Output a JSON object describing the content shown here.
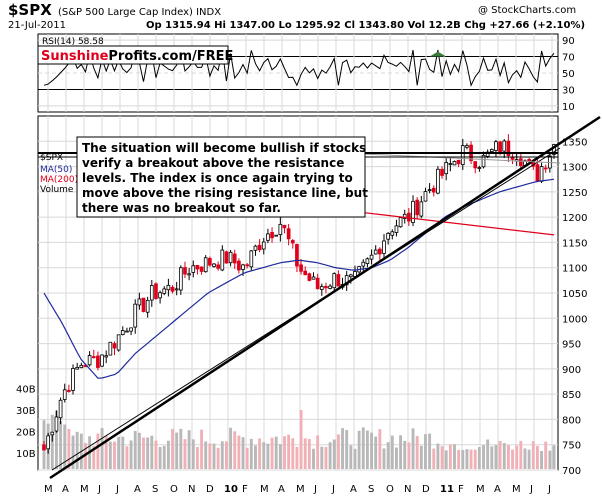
{
  "header": {
    "symbol": "$SPX",
    "name": "(S&P 500 Large Cap Index) INDX",
    "copyright": "@ StockCharts.com",
    "date": "21-Jul-2011",
    "ohlc": "Op 1315.94  Hi 1347.00  Lo 1295.92  Cl 1343.80  Vol 12.2B  Chg +27.66 (+2.10%)",
    "op_arrow": "▲"
  },
  "rsi": {
    "label": "RSI(14) 58.58",
    "ticks": [
      "90",
      "70",
      "50",
      "30",
      "10"
    ],
    "brand_red": "Sunshine",
    "brand_black": "Profits.com/FREE"
  },
  "legend": {
    "line1": "$SPX",
    "line2": "MA(50)",
    "line3": "MA(200)",
    "line4": "Volume"
  },
  "annotation": {
    "lines": [
      "The situation will become bullish if stocks",
      "verify a breakout above the resistance",
      "levels. The index is once again trying to",
      "move above the rising resistance line, but",
      "there was no breakout so far."
    ]
  },
  "price_ticks": [
    "1350",
    "1300",
    "1250",
    "1200",
    "1150",
    "1100",
    "1050",
    "1000",
    "950",
    "900",
    "850",
    "800",
    "750",
    "700"
  ],
  "volume_ticks": [
    "40B",
    "30B",
    "20B",
    "10B"
  ],
  "x_ticks": [
    "M",
    "A",
    "M",
    "J",
    "J",
    "A",
    "S",
    "O",
    "N",
    "D",
    "10",
    "F",
    "M",
    "A",
    "M",
    "J",
    "J",
    "A",
    "S",
    "O",
    "N",
    "D",
    "11",
    "F",
    "M",
    "A",
    "M",
    "J",
    "J"
  ],
  "colors": {
    "up": "#000000",
    "down": "#e0001b",
    "ma50": "#1e2a9c",
    "ma200": "#e0001b",
    "vol_up": "#b8b8b8",
    "vol_down": "#f0b0b6",
    "grid": "#d8d8d8",
    "rsi_overbought": "#3a7a3a"
  },
  "chart_data": {
    "type": "line",
    "title": "$SPX (S&P 500 Large Cap Index) INDX",
    "period": "weekly, Mar 2009 – Jul 2011",
    "x": [
      "2009-03",
      "2009-04",
      "2009-05",
      "2009-06",
      "2009-07",
      "2009-08",
      "2009-09",
      "2009-10",
      "2009-11",
      "2009-12",
      "2010-01",
      "2010-02",
      "2010-03",
      "2010-04",
      "2010-05",
      "2010-06",
      "2010-07",
      "2010-08",
      "2010-09",
      "2010-10",
      "2010-11",
      "2010-12",
      "2011-01",
      "2011-02",
      "2011-03",
      "2011-04",
      "2011-05",
      "2011-06",
      "2011-07"
    ],
    "series": [
      {
        "name": "$SPX",
        "values": [
          740,
          850,
          910,
          920,
          960,
          1010,
          1050,
          1060,
          1100,
          1110,
          1120,
          1100,
          1160,
          1190,
          1100,
          1060,
          1080,
          1070,
          1120,
          1180,
          1200,
          1250,
          1290,
          1330,
          1310,
          1340,
          1330,
          1280,
          1344
        ]
      },
      {
        "name": "MA(50)",
        "values": [
          1050,
          990,
          920,
          880,
          890,
          930,
          960,
          990,
          1020,
          1050,
          1070,
          1090,
          1100,
          1110,
          1115,
          1110,
          1100,
          1095,
          1100,
          1115,
          1140,
          1170,
          1200,
          1220,
          1235,
          1250,
          1260,
          1270,
          1275
        ]
      },
      {
        "name": "MA(200)",
        "values": [
          null,
          null,
          null,
          null,
          null,
          null,
          null,
          null,
          null,
          null,
          null,
          null,
          null,
          null,
          null,
          null,
          null,
          null,
          null,
          null,
          null,
          null,
          null,
          null,
          null,
          1200,
          1190,
          1180,
          1170
        ]
      }
    ],
    "ylim": [
      700,
      1400
    ],
    "annotations": [
      "The situation will become bullish if stocks verify a breakout above the resistance levels. The index is once again trying to move above the rising resistance line, but there was no breakout so far."
    ],
    "rsi": {
      "label": "RSI(14)",
      "value": 58.58,
      "levels": [
        90,
        70,
        50,
        30,
        10
      ]
    },
    "volume_axis": [
      "10B",
      "20B",
      "30B",
      "40B"
    ],
    "grid": true
  }
}
